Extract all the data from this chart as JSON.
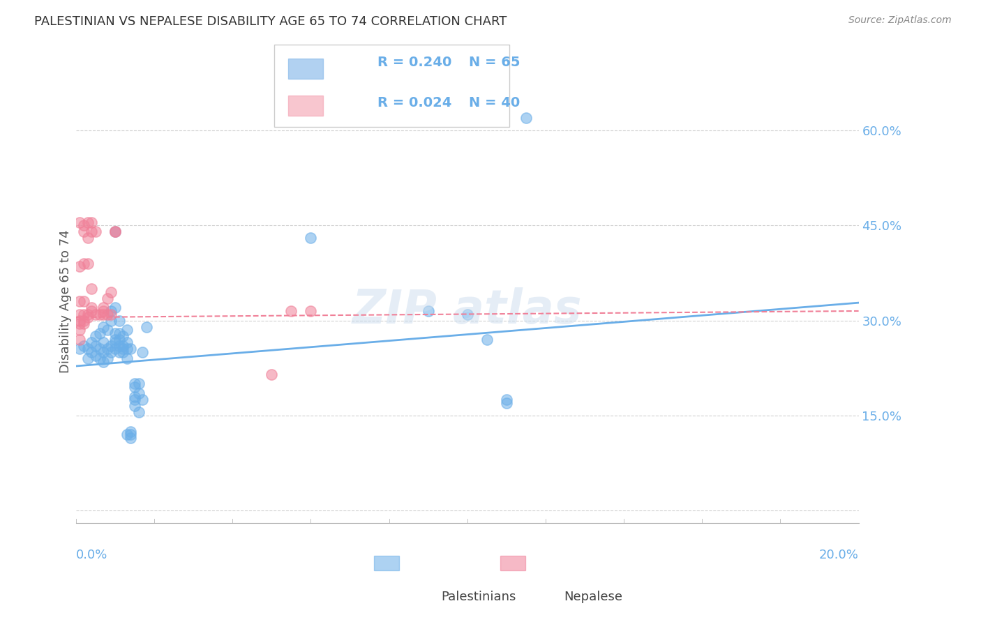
{
  "title": "PALESTINIAN VS NEPALESE DISABILITY AGE 65 TO 74 CORRELATION CHART",
  "source": "Source: ZipAtlas.com",
  "ylabel": "Disability Age 65 to 74",
  "yticks": [
    0.0,
    0.15,
    0.3,
    0.45,
    0.6
  ],
  "ytick_labels": [
    "",
    "15.0%",
    "30.0%",
    "45.0%",
    "60.0%"
  ],
  "xlim": [
    0.0,
    0.2
  ],
  "ylim": [
    -0.02,
    0.68
  ],
  "legend_entries": [
    {
      "label": "Palestinians",
      "R": "R = 0.240",
      "N": "N = 65",
      "color": "#7eb3e8"
    },
    {
      "label": "Nepalese",
      "R": "R = 0.024",
      "N": "N = 40",
      "color": "#f4a0b0"
    }
  ],
  "blue_scatter": [
    [
      0.001,
      0.255
    ],
    [
      0.002,
      0.26
    ],
    [
      0.003,
      0.24
    ],
    [
      0.003,
      0.255
    ],
    [
      0.004,
      0.25
    ],
    [
      0.004,
      0.265
    ],
    [
      0.005,
      0.245
    ],
    [
      0.005,
      0.26
    ],
    [
      0.005,
      0.275
    ],
    [
      0.006,
      0.24
    ],
    [
      0.006,
      0.255
    ],
    [
      0.006,
      0.28
    ],
    [
      0.007,
      0.235
    ],
    [
      0.007,
      0.25
    ],
    [
      0.007,
      0.265
    ],
    [
      0.007,
      0.29
    ],
    [
      0.008,
      0.24
    ],
    [
      0.008,
      0.255
    ],
    [
      0.008,
      0.285
    ],
    [
      0.009,
      0.25
    ],
    [
      0.009,
      0.26
    ],
    [
      0.009,
      0.3
    ],
    [
      0.009,
      0.315
    ],
    [
      0.01,
      0.255
    ],
    [
      0.01,
      0.265
    ],
    [
      0.01,
      0.27
    ],
    [
      0.01,
      0.28
    ],
    [
      0.01,
      0.32
    ],
    [
      0.01,
      0.44
    ],
    [
      0.011,
      0.25
    ],
    [
      0.011,
      0.26
    ],
    [
      0.011,
      0.27
    ],
    [
      0.011,
      0.28
    ],
    [
      0.011,
      0.3
    ],
    [
      0.012,
      0.25
    ],
    [
      0.012,
      0.255
    ],
    [
      0.012,
      0.26
    ],
    [
      0.012,
      0.275
    ],
    [
      0.013,
      0.24
    ],
    [
      0.013,
      0.255
    ],
    [
      0.013,
      0.265
    ],
    [
      0.013,
      0.285
    ],
    [
      0.013,
      0.12
    ],
    [
      0.014,
      0.255
    ],
    [
      0.014,
      0.125
    ],
    [
      0.014,
      0.115
    ],
    [
      0.014,
      0.12
    ],
    [
      0.015,
      0.175
    ],
    [
      0.015,
      0.18
    ],
    [
      0.015,
      0.165
    ],
    [
      0.015,
      0.195
    ],
    [
      0.015,
      0.2
    ],
    [
      0.016,
      0.185
    ],
    [
      0.016,
      0.155
    ],
    [
      0.016,
      0.2
    ],
    [
      0.017,
      0.175
    ],
    [
      0.017,
      0.25
    ],
    [
      0.018,
      0.29
    ],
    [
      0.06,
      0.43
    ],
    [
      0.09,
      0.315
    ],
    [
      0.1,
      0.31
    ],
    [
      0.105,
      0.27
    ],
    [
      0.11,
      0.17
    ],
    [
      0.11,
      0.175
    ],
    [
      0.115,
      0.62
    ]
  ],
  "pink_scatter": [
    [
      0.001,
      0.455
    ],
    [
      0.001,
      0.385
    ],
    [
      0.001,
      0.33
    ],
    [
      0.001,
      0.31
    ],
    [
      0.001,
      0.3
    ],
    [
      0.001,
      0.295
    ],
    [
      0.001,
      0.285
    ],
    [
      0.001,
      0.27
    ],
    [
      0.002,
      0.45
    ],
    [
      0.002,
      0.44
    ],
    [
      0.002,
      0.39
    ],
    [
      0.002,
      0.33
    ],
    [
      0.002,
      0.31
    ],
    [
      0.002,
      0.3
    ],
    [
      0.002,
      0.295
    ],
    [
      0.003,
      0.455
    ],
    [
      0.003,
      0.43
    ],
    [
      0.003,
      0.39
    ],
    [
      0.003,
      0.31
    ],
    [
      0.003,
      0.305
    ],
    [
      0.004,
      0.455
    ],
    [
      0.004,
      0.44
    ],
    [
      0.004,
      0.35
    ],
    [
      0.004,
      0.32
    ],
    [
      0.004,
      0.315
    ],
    [
      0.005,
      0.44
    ],
    [
      0.005,
      0.31
    ],
    [
      0.006,
      0.31
    ],
    [
      0.007,
      0.31
    ],
    [
      0.007,
      0.32
    ],
    [
      0.007,
      0.315
    ],
    [
      0.008,
      0.31
    ],
    [
      0.008,
      0.335
    ],
    [
      0.009,
      0.31
    ],
    [
      0.009,
      0.345
    ],
    [
      0.01,
      0.44
    ],
    [
      0.01,
      0.44
    ],
    [
      0.05,
      0.215
    ],
    [
      0.055,
      0.315
    ],
    [
      0.06,
      0.315
    ]
  ],
  "blue_line": {
    "x0": 0.0,
    "y0": 0.228,
    "x1": 0.2,
    "y1": 0.328
  },
  "pink_line": {
    "x0": 0.0,
    "y0": 0.305,
    "x1": 0.2,
    "y1": 0.315
  },
  "blue_color": "#6aaee8",
  "pink_color": "#f08098",
  "background_color": "#ffffff",
  "grid_color": "#d0d0d0"
}
